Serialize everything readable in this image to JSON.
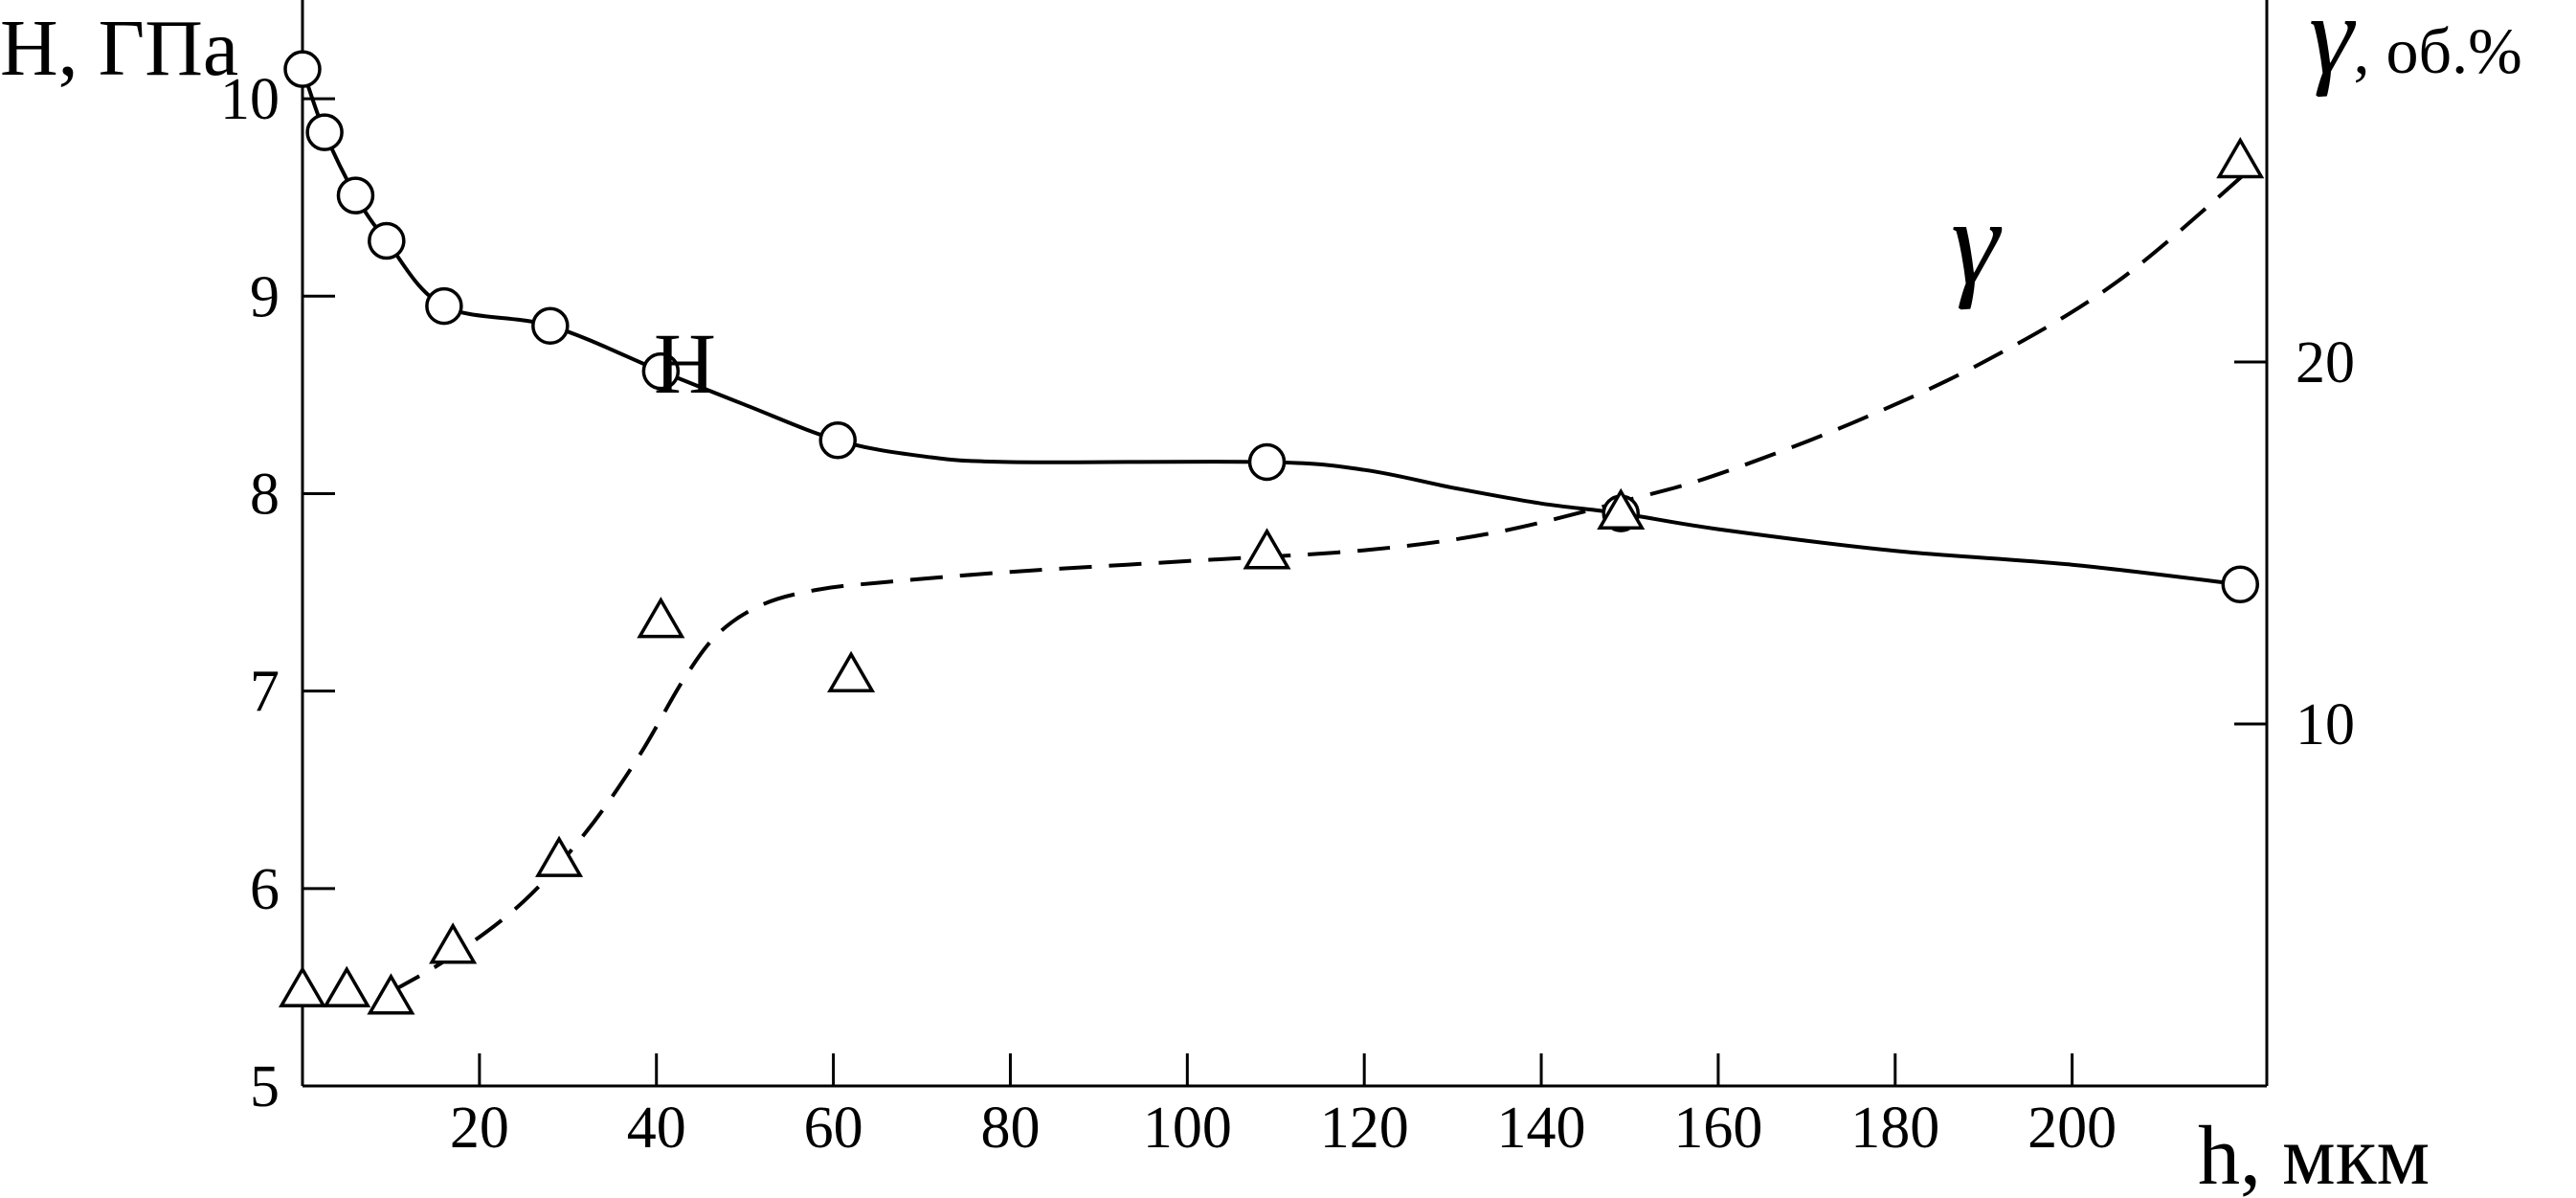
{
  "chart_data": {
    "type": "line",
    "x_axis": {
      "label": "h, мкм",
      "range": [
        0,
        222
      ],
      "ticks": [
        20,
        40,
        60,
        80,
        100,
        120,
        140,
        160,
        180,
        200
      ],
      "tick_labels": [
        "20",
        "40",
        "60",
        "80",
        "100",
        "120",
        "140",
        "160",
        "180",
        "200"
      ]
    },
    "y_axis_left": {
      "label": "H, ГПа",
      "range": [
        5,
        10.5
      ],
      "ticks": [
        5,
        6,
        7,
        8,
        9,
        10
      ],
      "tick_labels": [
        "5",
        "6",
        "7",
        "8",
        "9",
        "10"
      ]
    },
    "y_axis_right": {
      "label_symbol": "γ",
      "label_unit": ", об.%",
      "range": [
        0,
        30
      ],
      "ticks": [
        10,
        20
      ],
      "tick_labels": [
        "10",
        "20"
      ]
    },
    "grid": false,
    "series": [
      {
        "name": "H",
        "axis": "left",
        "marker": "circle",
        "line_style": "solid",
        "points": [
          [
            0,
            10.15
          ],
          [
            2.5,
            9.83
          ],
          [
            6,
            9.51
          ],
          [
            9.5,
            9.28
          ],
          [
            16,
            8.95
          ],
          [
            28,
            8.85
          ],
          [
            40.5,
            8.62
          ],
          [
            60.5,
            8.27
          ],
          [
            109,
            8.16
          ],
          [
            149,
            7.9
          ],
          [
            219,
            7.54
          ]
        ],
        "curve": [
          [
            0,
            10.15
          ],
          [
            2.5,
            9.83
          ],
          [
            6,
            9.51
          ],
          [
            9.5,
            9.28
          ],
          [
            16,
            8.95
          ],
          [
            28,
            8.85
          ],
          [
            40.5,
            8.62
          ],
          [
            50,
            8.45
          ],
          [
            60.5,
            8.27
          ],
          [
            70,
            8.19
          ],
          [
            80,
            8.16
          ],
          [
            109,
            8.16
          ],
          [
            120,
            8.12
          ],
          [
            130,
            8.03
          ],
          [
            140,
            7.95
          ],
          [
            149,
            7.9
          ],
          [
            160,
            7.82
          ],
          [
            180,
            7.71
          ],
          [
            200,
            7.64
          ],
          [
            219,
            7.54
          ]
        ]
      },
      {
        "name": "γ",
        "axis": "right",
        "marker": "triangle",
        "line_style": "dashed",
        "points": [
          [
            0,
            2.6
          ],
          [
            5,
            2.6
          ],
          [
            10,
            2.4
          ],
          [
            17,
            3.8
          ],
          [
            29,
            6.2
          ],
          [
            40.5,
            12.8
          ],
          [
            62,
            11.3
          ],
          [
            109,
            14.7
          ],
          [
            149,
            15.8
          ],
          [
            219,
            25.5
          ]
        ],
        "curve": [
          [
            10,
            2.6
          ],
          [
            17,
            3.6
          ],
          [
            25,
            5.1
          ],
          [
            32,
            7.0
          ],
          [
            38,
            9.1
          ],
          [
            43,
            11.2
          ],
          [
            47,
            12.5
          ],
          [
            52,
            13.3
          ],
          [
            58,
            13.7
          ],
          [
            65,
            13.9
          ],
          [
            80,
            14.2
          ],
          [
            100,
            14.5
          ],
          [
            120,
            14.8
          ],
          [
            135,
            15.3
          ],
          [
            150,
            16.2
          ],
          [
            160,
            16.9
          ],
          [
            175,
            18.3
          ],
          [
            190,
            20.0
          ],
          [
            205,
            22.2
          ],
          [
            220,
            25.3
          ]
        ]
      }
    ]
  }
}
